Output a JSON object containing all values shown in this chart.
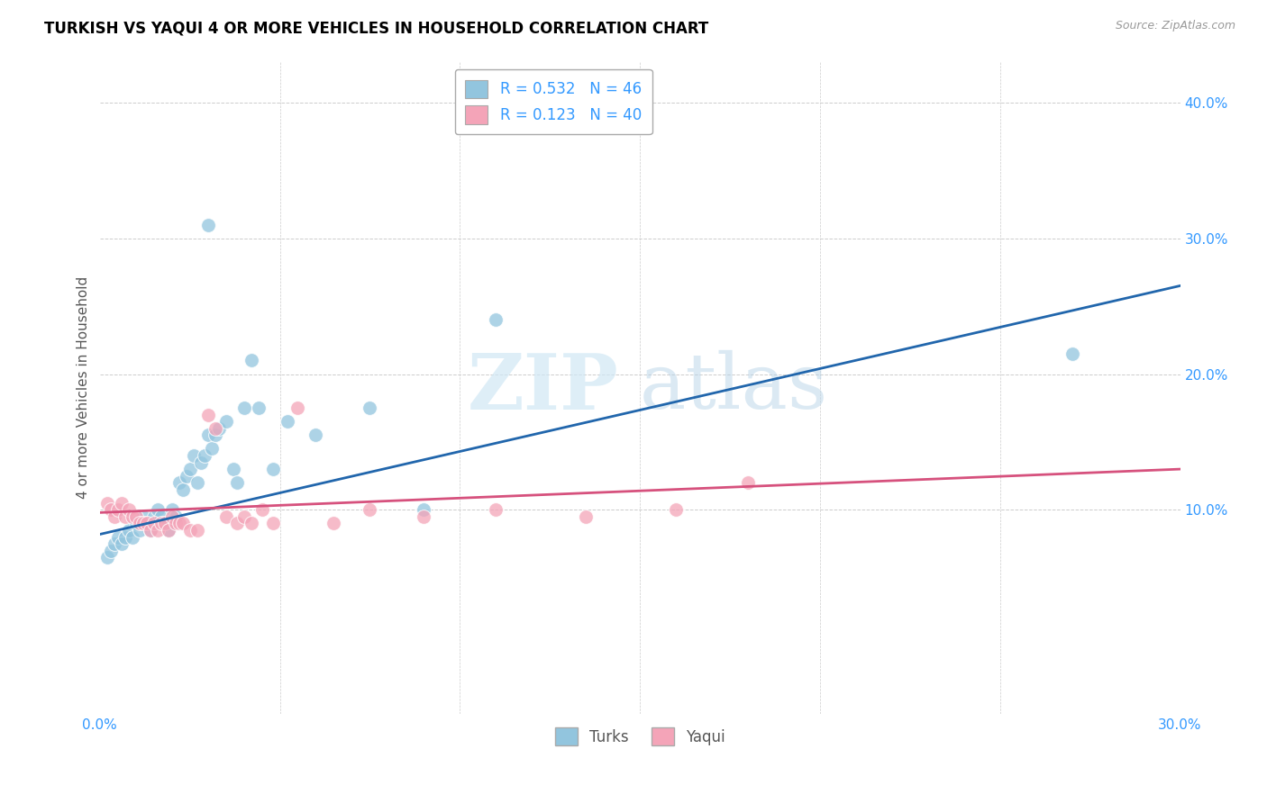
{
  "title": "TURKISH VS YAQUI 4 OR MORE VEHICLES IN HOUSEHOLD CORRELATION CHART",
  "source": "Source: ZipAtlas.com",
  "ylabel": "4 or more Vehicles in Household",
  "xlim": [
    0.0,
    0.3
  ],
  "ylim": [
    -0.05,
    0.43
  ],
  "yticks_right": [
    0.1,
    0.2,
    0.3,
    0.4
  ],
  "yticklabels_right": [
    "10.0%",
    "20.0%",
    "30.0%",
    "40.0%"
  ],
  "xticklabels_ends": [
    "0.0%",
    "30.0%"
  ],
  "blue_R": 0.532,
  "blue_N": 46,
  "pink_R": 0.123,
  "pink_N": 40,
  "blue_color": "#92c5de",
  "pink_color": "#f4a4b8",
  "blue_line_color": "#2166ac",
  "pink_line_color": "#d6517d",
  "watermark_zip": "ZIP",
  "watermark_atlas": "atlas",
  "turks_x": [
    0.002,
    0.003,
    0.004,
    0.005,
    0.006,
    0.007,
    0.008,
    0.009,
    0.01,
    0.011,
    0.012,
    0.013,
    0.014,
    0.015,
    0.016,
    0.017,
    0.018,
    0.019,
    0.02,
    0.021,
    0.022,
    0.023,
    0.024,
    0.025,
    0.026,
    0.027,
    0.028,
    0.029,
    0.03,
    0.031,
    0.032,
    0.033,
    0.035,
    0.037,
    0.038,
    0.04,
    0.042,
    0.044,
    0.048,
    0.052,
    0.06,
    0.075,
    0.09,
    0.11,
    0.27,
    0.03
  ],
  "turks_y": [
    0.065,
    0.07,
    0.075,
    0.08,
    0.075,
    0.08,
    0.085,
    0.08,
    0.09,
    0.085,
    0.095,
    0.09,
    0.085,
    0.095,
    0.1,
    0.095,
    0.09,
    0.085,
    0.1,
    0.095,
    0.12,
    0.115,
    0.125,
    0.13,
    0.14,
    0.12,
    0.135,
    0.14,
    0.155,
    0.145,
    0.155,
    0.16,
    0.165,
    0.13,
    0.12,
    0.175,
    0.21,
    0.175,
    0.13,
    0.165,
    0.155,
    0.175,
    0.1,
    0.24,
    0.215,
    0.31
  ],
  "yaqui_x": [
    0.002,
    0.003,
    0.004,
    0.005,
    0.006,
    0.007,
    0.008,
    0.009,
    0.01,
    0.011,
    0.012,
    0.013,
    0.014,
    0.015,
    0.016,
    0.017,
    0.018,
    0.019,
    0.02,
    0.021,
    0.022,
    0.023,
    0.025,
    0.027,
    0.03,
    0.032,
    0.035,
    0.038,
    0.04,
    0.042,
    0.045,
    0.048,
    0.055,
    0.065,
    0.075,
    0.09,
    0.11,
    0.135,
    0.16,
    0.18
  ],
  "yaqui_y": [
    0.105,
    0.1,
    0.095,
    0.1,
    0.105,
    0.095,
    0.1,
    0.095,
    0.095,
    0.09,
    0.09,
    0.09,
    0.085,
    0.09,
    0.085,
    0.09,
    0.09,
    0.085,
    0.095,
    0.09,
    0.09,
    0.09,
    0.085,
    0.085,
    0.17,
    0.16,
    0.095,
    0.09,
    0.095,
    0.09,
    0.1,
    0.09,
    0.175,
    0.09,
    0.1,
    0.095,
    0.1,
    0.095,
    0.1,
    0.12
  ],
  "blue_line_x0": 0.0,
  "blue_line_y0": 0.082,
  "blue_line_x1": 0.3,
  "blue_line_y1": 0.265,
  "pink_line_x0": 0.0,
  "pink_line_y0": 0.098,
  "pink_line_x1": 0.3,
  "pink_line_y1": 0.13
}
